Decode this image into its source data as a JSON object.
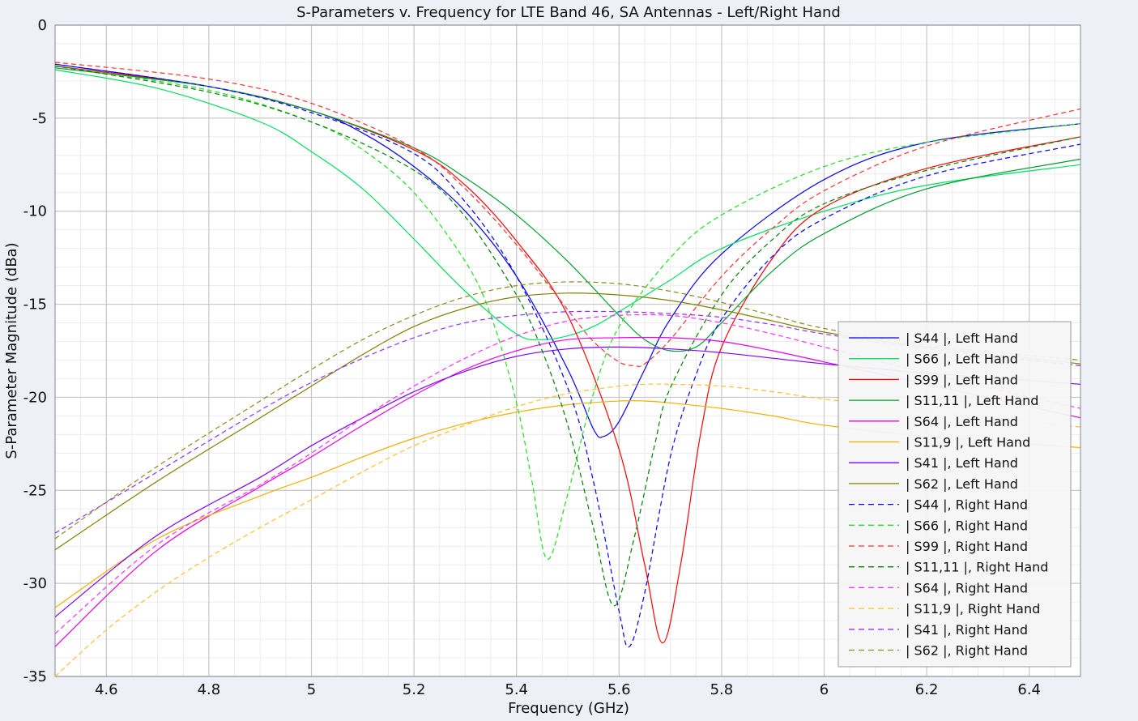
{
  "chart_data": {
    "type": "line",
    "title": "S-Parameters v. Frequency for LTE Band 46, SA Antennas - Left/Right Hand",
    "xlabel": "Frequency (GHz)",
    "ylabel": "S-Parameter Magnitude (dBa)",
    "xlim": [
      4.5,
      6.5
    ],
    "ylim": [
      -35,
      0
    ],
    "xticks": [
      4.6,
      4.8,
      5.0,
      5.2,
      5.4,
      5.6,
      5.8,
      6.0,
      6.2,
      6.4
    ],
    "xtick_labels": [
      "4.6",
      "4.8",
      "5",
      "5.2",
      "5.4",
      "5.6",
      "5.8",
      "6",
      "6.2",
      "6.4"
    ],
    "yticks": [
      0,
      -5,
      -10,
      -15,
      -20,
      -25,
      -30,
      -35
    ],
    "ytick_labels": [
      "0",
      "-5",
      "-10",
      "-15",
      "-20",
      "-25",
      "-30",
      "-35"
    ],
    "grid": true,
    "legend_position": "bottom-right",
    "series": [
      {
        "name": "| S44 |, Left Hand",
        "color": "#0000ff",
        "style": "solid",
        "x": [
          4.5,
          4.8,
          5.0,
          5.1,
          5.2,
          5.3,
          5.4,
          5.5,
          5.55,
          5.57,
          5.6,
          5.65,
          5.7,
          5.8,
          6.0,
          6.2,
          6.5
        ],
        "y": [
          -2.1,
          -3.3,
          -4.6,
          -5.8,
          -7.6,
          -10.0,
          -13.5,
          -18.5,
          -21.7,
          -22.1,
          -21.3,
          -18.5,
          -15.8,
          -12.3,
          -8.3,
          -6.3,
          -5.3
        ]
      },
      {
        "name": "| S66 |, Left Hand",
        "color": "#00e060",
        "style": "solid",
        "x": [
          4.5,
          4.7,
          4.9,
          5.0,
          5.1,
          5.2,
          5.3,
          5.4,
          5.45,
          5.5,
          5.55,
          5.6,
          5.7,
          5.8,
          6.0,
          6.2,
          6.5
        ],
        "y": [
          -2.4,
          -3.4,
          -5.2,
          -6.8,
          -8.8,
          -11.5,
          -14.3,
          -16.6,
          -16.9,
          -16.7,
          -16.2,
          -15.4,
          -13.7,
          -12.0,
          -10.0,
          -8.6,
          -7.5
        ]
      },
      {
        "name": "| S99 |, Left Hand",
        "color": "#ff0000",
        "style": "solid",
        "x": [
          4.5,
          4.8,
          5.0,
          5.2,
          5.3,
          5.4,
          5.5,
          5.6,
          5.65,
          5.685,
          5.72,
          5.76,
          5.8,
          5.9,
          6.0,
          6.2,
          6.5
        ],
        "y": [
          -2.2,
          -3.3,
          -4.6,
          -6.7,
          -8.6,
          -11.6,
          -15.6,
          -22.8,
          -29.0,
          -33.2,
          -29.0,
          -21.8,
          -17.3,
          -12.5,
          -9.8,
          -7.7,
          -6.0
        ]
      },
      {
        "name": "| S11,11 |, Left Hand",
        "color": "#00a030",
        "style": "solid",
        "x": [
          4.5,
          4.8,
          5.0,
          5.2,
          5.3,
          5.4,
          5.5,
          5.6,
          5.65,
          5.7,
          5.75,
          5.8,
          5.9,
          6.0,
          6.2,
          6.5
        ],
        "y": [
          -2.3,
          -3.3,
          -4.6,
          -6.6,
          -8.2,
          -10.2,
          -12.7,
          -15.6,
          -16.9,
          -17.5,
          -17.3,
          -16.0,
          -13.2,
          -11.2,
          -8.8,
          -7.2
        ]
      },
      {
        "name": "| S64 |, Left Hand",
        "color": "#ee00ee",
        "style": "solid",
        "x": [
          4.5,
          4.7,
          4.9,
          5.0,
          5.1,
          5.2,
          5.3,
          5.4,
          5.5,
          5.6,
          5.7,
          5.8,
          5.9,
          6.0,
          6.2,
          6.4,
          6.5
        ],
        "y": [
          -33.4,
          -28.2,
          -24.8,
          -23.2,
          -21.5,
          -19.9,
          -18.5,
          -17.5,
          -16.9,
          -16.8,
          -16.8,
          -17.0,
          -17.5,
          -18.1,
          -19.3,
          -20.5,
          -21.1
        ]
      },
      {
        "name": "| S11,9 |, Left Hand",
        "color": "#f0b000",
        "style": "solid",
        "x": [
          4.5,
          4.7,
          4.9,
          5.0,
          5.1,
          5.2,
          5.3,
          5.4,
          5.5,
          5.6,
          5.65,
          5.7,
          5.8,
          5.9,
          6.0,
          6.2,
          6.5
        ],
        "y": [
          -31.3,
          -27.6,
          -25.3,
          -24.3,
          -23.2,
          -22.2,
          -21.4,
          -20.8,
          -20.4,
          -20.2,
          -20.2,
          -20.3,
          -20.6,
          -21.0,
          -21.5,
          -22.1,
          -22.7
        ]
      },
      {
        "name": "| S41 |, Left Hand",
        "color": "#8000ff",
        "style": "solid",
        "x": [
          4.5,
          4.7,
          4.9,
          5.0,
          5.1,
          5.2,
          5.3,
          5.4,
          5.5,
          5.6,
          5.7,
          5.8,
          5.9,
          6.0,
          6.2,
          6.5
        ],
        "y": [
          -31.8,
          -27.4,
          -24.3,
          -22.6,
          -21.1,
          -19.7,
          -18.6,
          -17.8,
          -17.4,
          -17.3,
          -17.4,
          -17.6,
          -17.9,
          -18.2,
          -18.7,
          -19.3
        ]
      },
      {
        "name": "| S62 |, Left Hand",
        "color": "#808000",
        "style": "solid",
        "x": [
          4.5,
          4.7,
          4.9,
          5.0,
          5.1,
          5.2,
          5.3,
          5.4,
          5.5,
          5.6,
          5.7,
          5.8,
          5.9,
          6.0,
          6.2,
          6.5
        ],
        "y": [
          -28.2,
          -24.5,
          -21.1,
          -19.4,
          -17.7,
          -16.2,
          -15.2,
          -14.6,
          -14.4,
          -14.5,
          -14.8,
          -15.3,
          -15.9,
          -16.5,
          -17.3,
          -18.2
        ]
      },
      {
        "name": "| S44 |, Right Hand",
        "color": "#0000ff",
        "style": "dashed",
        "x": [
          4.5,
          4.8,
          5.0,
          5.2,
          5.3,
          5.4,
          5.5,
          5.55,
          5.6,
          5.62,
          5.65,
          5.7,
          5.75,
          5.8,
          5.9,
          6.0,
          6.2,
          6.5
        ],
        "y": [
          -2.1,
          -3.3,
          -4.7,
          -6.9,
          -9.5,
          -13.5,
          -19.5,
          -24.5,
          -31.5,
          -33.4,
          -30.5,
          -23.2,
          -18.8,
          -15.8,
          -12.4,
          -10.4,
          -8.1,
          -6.4
        ]
      },
      {
        "name": "| S66 |, Right Hand",
        "color": "#20e020",
        "style": "dashed",
        "x": [
          4.5,
          4.8,
          5.0,
          5.1,
          5.2,
          5.3,
          5.35,
          5.4,
          5.43,
          5.46,
          5.5,
          5.55,
          5.6,
          5.7,
          5.8,
          6.0,
          6.2,
          6.5
        ],
        "y": [
          -2.2,
          -3.5,
          -5.2,
          -6.7,
          -9.0,
          -12.7,
          -15.6,
          -20.3,
          -24.5,
          -28.7,
          -25.2,
          -19.8,
          -16.2,
          -12.5,
          -10.2,
          -7.6,
          -6.3,
          -5.3
        ]
      },
      {
        "name": "| S99 |, Right Hand",
        "color": "#ff3030",
        "style": "dashed",
        "x": [
          4.5,
          4.8,
          5.0,
          5.2,
          5.3,
          5.4,
          5.5,
          5.55,
          5.6,
          5.63,
          5.65,
          5.7,
          5.8,
          5.9,
          6.0,
          6.2,
          6.5
        ],
        "y": [
          -2.0,
          -2.9,
          -4.2,
          -6.6,
          -8.8,
          -11.8,
          -15.3,
          -17.0,
          -18.1,
          -18.3,
          -18.2,
          -16.9,
          -13.5,
          -10.9,
          -8.9,
          -6.5,
          -4.5
        ]
      },
      {
        "name": "| S11,11 |, Right Hand",
        "color": "#008000",
        "style": "dashed",
        "x": [
          4.5,
          4.8,
          5.0,
          5.2,
          5.3,
          5.4,
          5.45,
          5.5,
          5.55,
          5.59,
          5.63,
          5.67,
          5.7,
          5.8,
          5.9,
          6.0,
          6.2,
          6.5
        ],
        "y": [
          -2.2,
          -3.6,
          -5.2,
          -7.8,
          -10.3,
          -14.5,
          -17.5,
          -21.5,
          -27.0,
          -31.2,
          -27.5,
          -22.5,
          -19.5,
          -14.5,
          -11.5,
          -9.6,
          -7.8,
          -6.0
        ]
      },
      {
        "name": "| S64 |, Right Hand",
        "color": "#ff30ff",
        "style": "dashed",
        "x": [
          4.5,
          4.7,
          4.9,
          5.0,
          5.1,
          5.2,
          5.3,
          5.4,
          5.5,
          5.6,
          5.7,
          5.8,
          5.9,
          6.0,
          6.2,
          6.5
        ],
        "y": [
          -32.7,
          -27.9,
          -24.7,
          -23.0,
          -21.1,
          -19.4,
          -17.9,
          -16.7,
          -15.9,
          -15.6,
          -15.6,
          -16.0,
          -16.6,
          -17.3,
          -18.7,
          -20.6
        ]
      },
      {
        "name": "| S11,9 |, Right Hand",
        "color": "#ffc030",
        "style": "dashed",
        "x": [
          4.5,
          4.6,
          4.7,
          4.8,
          4.9,
          5.0,
          5.1,
          5.2,
          5.3,
          5.4,
          5.5,
          5.6,
          5.65,
          5.7,
          5.8,
          5.9,
          6.0,
          6.2,
          6.5
        ],
        "y": [
          -35.0,
          -32.5,
          -30.4,
          -28.6,
          -27.0,
          -25.5,
          -24.0,
          -22.6,
          -21.5,
          -20.5,
          -19.8,
          -19.4,
          -19.3,
          -19.3,
          -19.4,
          -19.7,
          -20.1,
          -20.7,
          -21.6
        ]
      },
      {
        "name": "| S41 |, Right Hand",
        "color": "#9030ff",
        "style": "dashed",
        "x": [
          4.5,
          4.7,
          4.9,
          5.0,
          5.1,
          5.2,
          5.3,
          5.4,
          5.5,
          5.6,
          5.7,
          5.8,
          5.9,
          6.0,
          6.2,
          6.5
        ],
        "y": [
          -27.3,
          -24.0,
          -20.7,
          -19.2,
          -17.9,
          -16.8,
          -16.0,
          -15.6,
          -15.4,
          -15.4,
          -15.5,
          -15.7,
          -16.1,
          -16.6,
          -17.4,
          -18.3
        ]
      },
      {
        "name": "| S62 |, Right Hand",
        "color": "#8a8a20",
        "style": "dashed",
        "x": [
          4.5,
          4.7,
          4.9,
          5.0,
          5.1,
          5.2,
          5.3,
          5.4,
          5.5,
          5.6,
          5.7,
          5.8,
          5.9,
          6.0,
          6.2,
          6.5
        ],
        "y": [
          -27.6,
          -23.7,
          -20.2,
          -18.5,
          -16.9,
          -15.6,
          -14.6,
          -14.0,
          -13.8,
          -13.9,
          -14.3,
          -14.9,
          -15.6,
          -16.3,
          -17.2,
          -18.0
        ]
      }
    ]
  }
}
